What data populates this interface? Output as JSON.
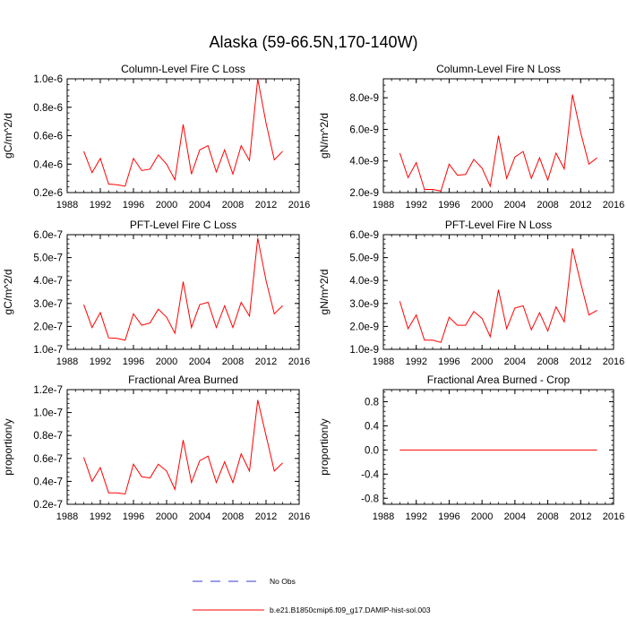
{
  "title": "Alaska (59-66.5N,170-140W)",
  "colors": {
    "series": "#ff0000",
    "obs": "#3a3ad6",
    "axis": "#000000"
  },
  "legend": [
    {
      "label": "No Obs",
      "style": "dashed",
      "color": "#3a3ad6"
    },
    {
      "label": "b.e21.B1850cmip6.f09_g17.DAMIP-hist-sol.003",
      "style": "solid",
      "color": "#ff0000"
    }
  ],
  "chart_data": [
    {
      "type": "line",
      "title": "Column-Level Fire C Loss",
      "ylabel": "gC/m^2/d",
      "xlim": [
        1988,
        2016
      ],
      "ylim": [
        2e-07,
        1e-06
      ],
      "xticks": [
        "1988",
        "1992",
        "1996",
        "2000",
        "2004",
        "2008",
        "2012",
        "2016"
      ],
      "yticks": [
        {
          "v": 2e-07,
          "label": "0.2e-6"
        },
        {
          "v": 4e-07,
          "label": "0.4e-6"
        },
        {
          "v": 6e-07,
          "label": "0.6e-6"
        },
        {
          "v": 8e-07,
          "label": "0.8e-6"
        },
        {
          "v": 1e-06,
          "label": "1.0e-6"
        }
      ],
      "x": [
        1990,
        1991,
        1992,
        1993,
        1994,
        1995,
        1996,
        1997,
        1998,
        1999,
        2000,
        2001,
        2002,
        2003,
        2004,
        2005,
        2006,
        2007,
        2008,
        2009,
        2010,
        2011,
        2012,
        2013,
        2014
      ],
      "series": [
        {
          "values": [
            4.9e-07,
            3.4e-07,
            4.4e-07,
            2.6e-07,
            2.55e-07,
            2.45e-07,
            4.4e-07,
            3.55e-07,
            3.65e-07,
            4.65e-07,
            4e-07,
            2.9e-07,
            6.8e-07,
            3.3e-07,
            5e-07,
            5.3e-07,
            3.45e-07,
            5e-07,
            3.3e-07,
            5.3e-07,
            4.25e-07,
            1e-06,
            6.9e-07,
            4.3e-07,
            4.9e-07
          ]
        }
      ]
    },
    {
      "type": "line",
      "title": "Column-Level Fire N Loss",
      "ylabel": "gN/m^2/d",
      "xlim": [
        1988,
        2016
      ],
      "ylim": [
        2e-09,
        9.2e-09
      ],
      "xticks": [
        "1988",
        "1992",
        "1996",
        "2000",
        "2004",
        "2008",
        "2012",
        "2016"
      ],
      "yticks": [
        {
          "v": 2e-09,
          "label": "2.0e-9"
        },
        {
          "v": 4e-09,
          "label": "4.0e-9"
        },
        {
          "v": 6e-09,
          "label": "6.0e-9"
        },
        {
          "v": 8e-09,
          "label": "8.0e-9"
        }
      ],
      "x": [
        1990,
        1991,
        1992,
        1993,
        1994,
        1995,
        1996,
        1997,
        1998,
        1999,
        2000,
        2001,
        2002,
        2003,
        2004,
        2005,
        2006,
        2007,
        2008,
        2009,
        2010,
        2011,
        2012,
        2013,
        2014
      ],
      "series": [
        {
          "values": [
            4.5e-09,
            2.95e-09,
            3.9e-09,
            2.2e-09,
            2.2e-09,
            2.1e-09,
            3.8e-09,
            3.1e-09,
            3.15e-09,
            4.1e-09,
            3.55e-09,
            2.4e-09,
            5.6e-09,
            2.9e-09,
            4.25e-09,
            4.6e-09,
            2.9e-09,
            4.2e-09,
            2.8e-09,
            4.5e-09,
            3.5e-09,
            8.2e-09,
            5.8e-09,
            3.8e-09,
            4.2e-09
          ]
        }
      ]
    },
    {
      "type": "line",
      "title": "PFT-Level Fire C Loss",
      "ylabel": "gC/m^2/d",
      "xlim": [
        1988,
        2016
      ],
      "ylim": [
        1e-07,
        6e-07
      ],
      "xticks": [
        "1988",
        "1992",
        "1996",
        "2000",
        "2004",
        "2008",
        "2012",
        "2016"
      ],
      "yticks": [
        {
          "v": 1e-07,
          "label": "1.0e-7"
        },
        {
          "v": 2e-07,
          "label": "2.0e-7"
        },
        {
          "v": 3e-07,
          "label": "3.0e-7"
        },
        {
          "v": 4e-07,
          "label": "4.0e-7"
        },
        {
          "v": 5e-07,
          "label": "5.0e-7"
        },
        {
          "v": 6e-07,
          "label": "6.0e-7"
        }
      ],
      "x": [
        1990,
        1991,
        1992,
        1993,
        1994,
        1995,
        1996,
        1997,
        1998,
        1999,
        2000,
        2001,
        2002,
        2003,
        2004,
        2005,
        2006,
        2007,
        2008,
        2009,
        2010,
        2011,
        2012,
        2013,
        2014
      ],
      "series": [
        {
          "values": [
            2.95e-07,
            1.95e-07,
            2.6e-07,
            1.5e-07,
            1.48e-07,
            1.4e-07,
            2.55e-07,
            2.05e-07,
            2.15e-07,
            2.75e-07,
            2.4e-07,
            1.7e-07,
            3.95e-07,
            1.95e-07,
            2.95e-07,
            3.05e-07,
            1.95e-07,
            2.9e-07,
            1.95e-07,
            3.05e-07,
            2.45e-07,
            5.85e-07,
            4e-07,
            2.55e-07,
            2.9e-07
          ]
        }
      ]
    },
    {
      "type": "line",
      "title": "PFT-Level Fire N Loss",
      "ylabel": "gN/m^2/d",
      "xlim": [
        1988,
        2016
      ],
      "ylim": [
        1e-09,
        6e-09
      ],
      "xticks": [
        "1988",
        "1992",
        "1996",
        "2000",
        "2004",
        "2008",
        "2012",
        "2016"
      ],
      "yticks": [
        {
          "v": 1e-09,
          "label": "1.0e-9"
        },
        {
          "v": 2e-09,
          "label": "2.0e-9"
        },
        {
          "v": 3e-09,
          "label": "3.0e-9"
        },
        {
          "v": 4e-09,
          "label": "4.0e-9"
        },
        {
          "v": 5e-09,
          "label": "5.0e-9"
        },
        {
          "v": 6e-09,
          "label": "6.0e-9"
        }
      ],
      "x": [
        1990,
        1991,
        1992,
        1993,
        1994,
        1995,
        1996,
        1997,
        1998,
        1999,
        2000,
        2001,
        2002,
        2003,
        2004,
        2005,
        2006,
        2007,
        2008,
        2009,
        2010,
        2011,
        2012,
        2013,
        2014
      ],
      "series": [
        {
          "values": [
            3.1e-09,
            1.9e-09,
            2.5e-09,
            1.4e-09,
            1.4e-09,
            1.3e-09,
            2.4e-09,
            2.05e-09,
            2.05e-09,
            2.65e-09,
            2.35e-09,
            1.55e-09,
            3.6e-09,
            1.9e-09,
            2.8e-09,
            2.9e-09,
            1.85e-09,
            2.6e-09,
            1.8e-09,
            2.85e-09,
            2.2e-09,
            5.4e-09,
            3.9e-09,
            2.5e-09,
            2.7e-09
          ]
        }
      ]
    },
    {
      "type": "line",
      "title": "Fractional Area Burned",
      "ylabel": "proportion/y",
      "xlim": [
        1988,
        2016
      ],
      "ylim": [
        2e-08,
        1.2e-07
      ],
      "xticks": [
        "1988",
        "1992",
        "1996",
        "2000",
        "2004",
        "2008",
        "2012",
        "2016"
      ],
      "yticks": [
        {
          "v": 2e-08,
          "label": "0.2e-7"
        },
        {
          "v": 4e-08,
          "label": "0.4e-7"
        },
        {
          "v": 6e-08,
          "label": "0.6e-7"
        },
        {
          "v": 8e-08,
          "label": "0.8e-7"
        },
        {
          "v": 1e-07,
          "label": "1.0e-7"
        },
        {
          "v": 1.2e-07,
          "label": "1.2e-7"
        }
      ],
      "x": [
        1990,
        1991,
        1992,
        1993,
        1994,
        1995,
        1996,
        1997,
        1998,
        1999,
        2000,
        2001,
        2002,
        2003,
        2004,
        2005,
        2006,
        2007,
        2008,
        2009,
        2010,
        2011,
        2012,
        2013,
        2014
      ],
      "series": [
        {
          "values": [
            6.1e-08,
            4e-08,
            5.2e-08,
            3e-08,
            3e-08,
            2.9e-08,
            5.5e-08,
            4.4e-08,
            4.3e-08,
            5.5e-08,
            4.9e-08,
            3.3e-08,
            7.6e-08,
            3.9e-08,
            5.8e-08,
            6.2e-08,
            3.9e-08,
            5.7e-08,
            3.9e-08,
            6.4e-08,
            4.9e-08,
            1.11e-07,
            8e-08,
            4.9e-08,
            5.6e-08
          ]
        }
      ]
    },
    {
      "type": "line",
      "title": "Fractional Area Burned - Crop",
      "ylabel": "proportion/y",
      "xlim": [
        1988,
        2016
      ],
      "ylim": [
        -0.9,
        1.0
      ],
      "xticks": [
        "1988",
        "1992",
        "1996",
        "2000",
        "2004",
        "2008",
        "2012",
        "2016"
      ],
      "yticks": [
        {
          "v": -0.8,
          "label": "-0.8"
        },
        {
          "v": -0.4,
          "label": "-0.4"
        },
        {
          "v": 0,
          "label": "0.0"
        },
        {
          "v": 0.4,
          "label": "0.4"
        },
        {
          "v": 0.8,
          "label": "0.8"
        }
      ],
      "x": [
        1990,
        1991,
        1992,
        1993,
        1994,
        1995,
        1996,
        1997,
        1998,
        1999,
        2000,
        2001,
        2002,
        2003,
        2004,
        2005,
        2006,
        2007,
        2008,
        2009,
        2010,
        2011,
        2012,
        2013,
        2014
      ],
      "series": [
        {
          "values": [
            0,
            0,
            0,
            0,
            0,
            0,
            0,
            0,
            0,
            0,
            0,
            0,
            0,
            0,
            0,
            0,
            0,
            0,
            0,
            0,
            0,
            0,
            0,
            0,
            0
          ]
        }
      ]
    }
  ]
}
